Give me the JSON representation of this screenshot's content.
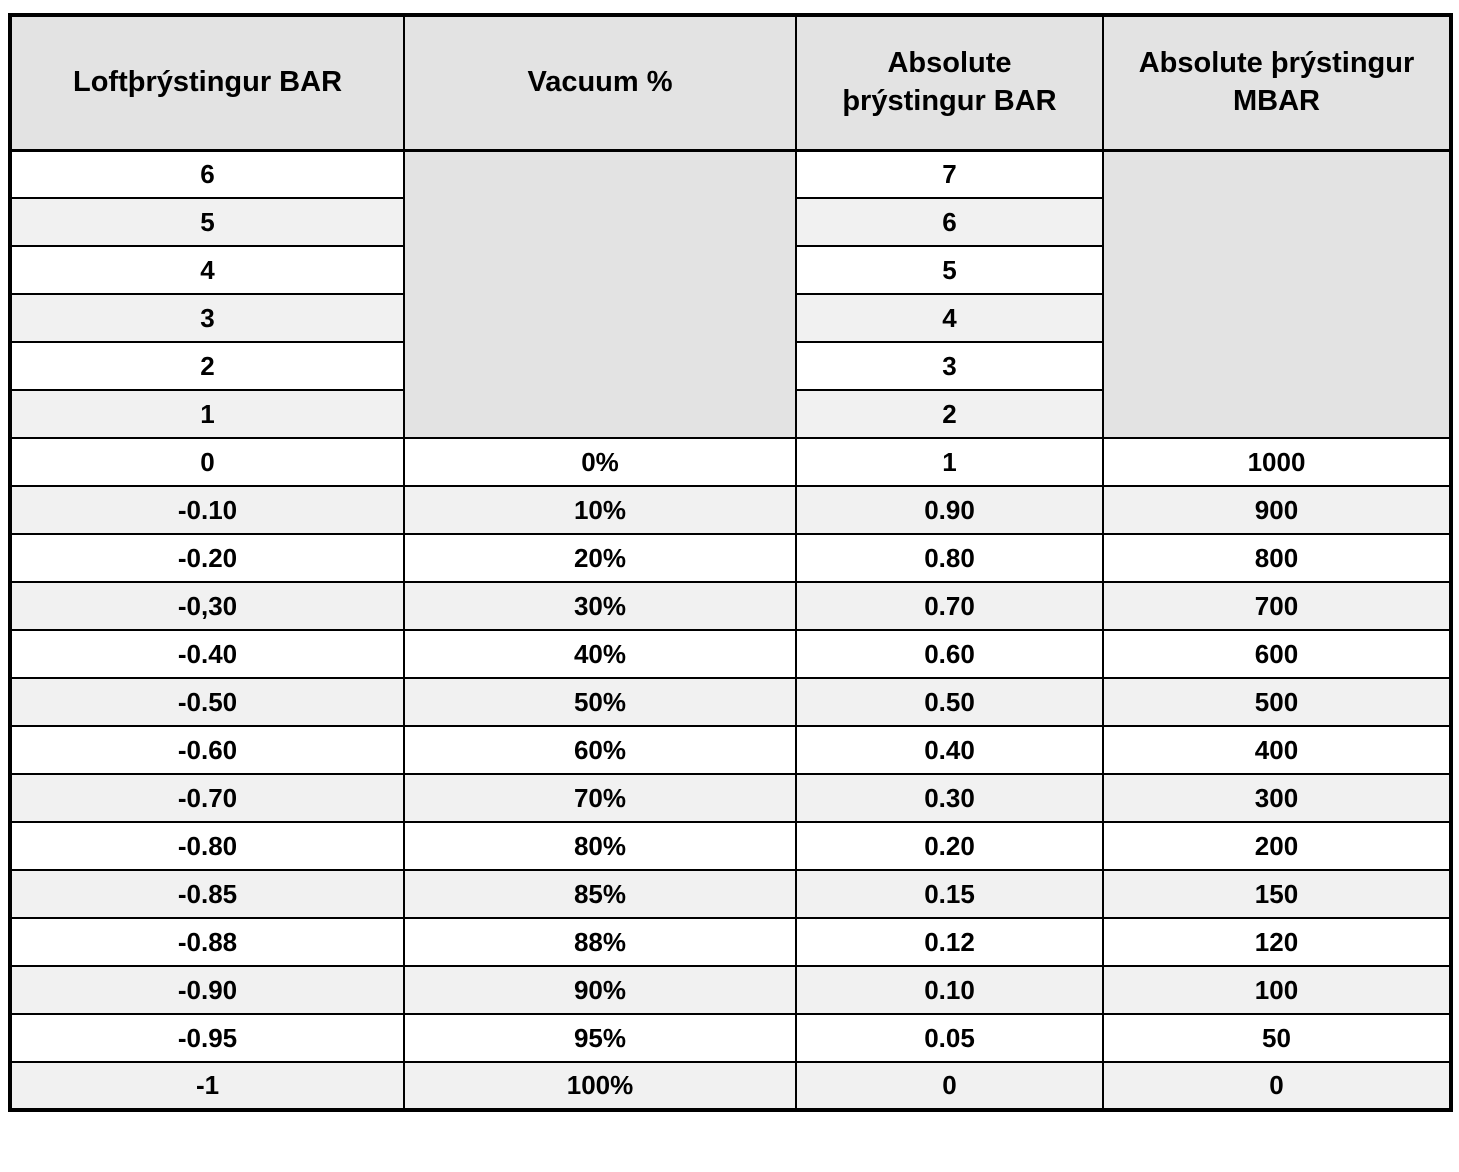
{
  "colors": {
    "border": "#000000",
    "header_bg": "#e3e3e3",
    "merged_bg": "#e3e3e3",
    "stripe_bg": "#f1f1f1",
    "row_bg": "#ffffff",
    "text": "#000000",
    "page_bg": "#ffffff"
  },
  "table_display": {
    "headers": [
      "Loftþrýstingur BAR",
      "Vacuum %",
      "Absolute\nþrýstingur BAR",
      "Absolute þrýstingur\nMBAR"
    ]
  },
  "chart_data": {
    "type": "table",
    "columns": [
      "Loftþrýstingur BAR",
      "Vacuum %",
      "Absolute þrýstingur BAR",
      "Absolute þrýstingur MBAR"
    ],
    "merged_rows": 6,
    "merged_columns_note": "Vacuum % and MBAR cells are single merged gray cells for the first 6 rows",
    "rows": [
      [
        "6",
        "",
        "7",
        ""
      ],
      [
        "5",
        "",
        "6",
        ""
      ],
      [
        "4",
        "",
        "5",
        ""
      ],
      [
        "3",
        "",
        "4",
        ""
      ],
      [
        "2",
        "",
        "3",
        ""
      ],
      [
        "1",
        "",
        "2",
        ""
      ],
      [
        "0",
        "0%",
        "1",
        "1000"
      ],
      [
        "-0.10",
        "10%",
        "0.90",
        "900"
      ],
      [
        "-0.20",
        "20%",
        "0.80",
        "800"
      ],
      [
        "-0,30",
        "30%",
        "0.70",
        "700"
      ],
      [
        "-0.40",
        "40%",
        "0.60",
        "600"
      ],
      [
        "-0.50",
        "50%",
        "0.50",
        "500"
      ],
      [
        "-0.60",
        "60%",
        "0.40",
        "400"
      ],
      [
        "-0.70",
        "70%",
        "0.30",
        "300"
      ],
      [
        "-0.80",
        "80%",
        "0.20",
        "200"
      ],
      [
        "-0.85",
        "85%",
        "0.15",
        "150"
      ],
      [
        "-0.88",
        "88%",
        "0.12",
        "120"
      ],
      [
        "-0.90",
        "90%",
        "0.10",
        "100"
      ],
      [
        "-0.95",
        "95%",
        "0.05",
        "50"
      ],
      [
        "-1",
        "100%",
        "0",
        "0"
      ]
    ]
  }
}
